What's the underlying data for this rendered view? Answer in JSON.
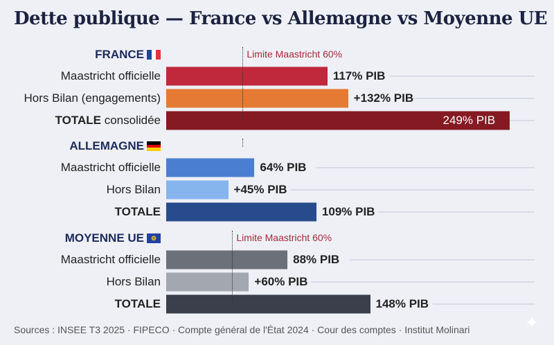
{
  "chart_data": {
    "type": "bar",
    "title": "Dette publique — France vs Allemagne vs Moyenne UE",
    "unit": "% PIB",
    "limit": {
      "value": 60,
      "label": "Limite Maastricht 60%"
    },
    "groups": [
      {
        "name": "FRANCE",
        "flag": "fr",
        "show_limit": true,
        "bars": [
          {
            "label_bold": "",
            "label": "Maastricht officielle",
            "value": 117,
            "value_label": "117% PIB",
            "color": "#c0283b"
          },
          {
            "label_bold": "",
            "label": "Hors Bilan (engagements)",
            "value": 132,
            "value_label": "+132% PIB",
            "color": "#e47a33"
          },
          {
            "label_bold": "TOTALE",
            "label": " consolidée",
            "value": 249,
            "value_label": "249% PIB",
            "color": "#861a22",
            "inside": true
          }
        ]
      },
      {
        "name": "ALLEMAGNE",
        "flag": "de",
        "show_limit": false,
        "bars": [
          {
            "label_bold": "",
            "label": "Maastricht officielle",
            "value": 64,
            "value_label": "64% PIB",
            "color": "#4a7fd0"
          },
          {
            "label_bold": "",
            "label": "Hors Bilan",
            "value": 45,
            "value_label": "+45% PIB",
            "color": "#86b5ee"
          },
          {
            "label_bold": "TOTALE",
            "label": "",
            "value": 109,
            "value_label": "109% PIB",
            "color": "#274b8c"
          }
        ]
      },
      {
        "name": "MOYENNE UE",
        "flag": "eu",
        "show_limit": true,
        "bars": [
          {
            "label_bold": "",
            "label": "Maastricht officielle",
            "value": 88,
            "value_label": "88% PIB",
            "color": "#6b7079"
          },
          {
            "label_bold": "",
            "label": "Hors Bilan",
            "value": 60,
            "value_label": "+60% PIB",
            "color": "#a2a7b0"
          },
          {
            "label_bold": "TOTALE",
            "label": "",
            "value": 148,
            "value_label": "148% PIB",
            "color": "#3a3f4b"
          }
        ]
      }
    ]
  },
  "footer": "Sources : INSEE T3 2025 · FIPECO · Compte général de l'État 2024 · Cour des comptes · Institut Molinari"
}
